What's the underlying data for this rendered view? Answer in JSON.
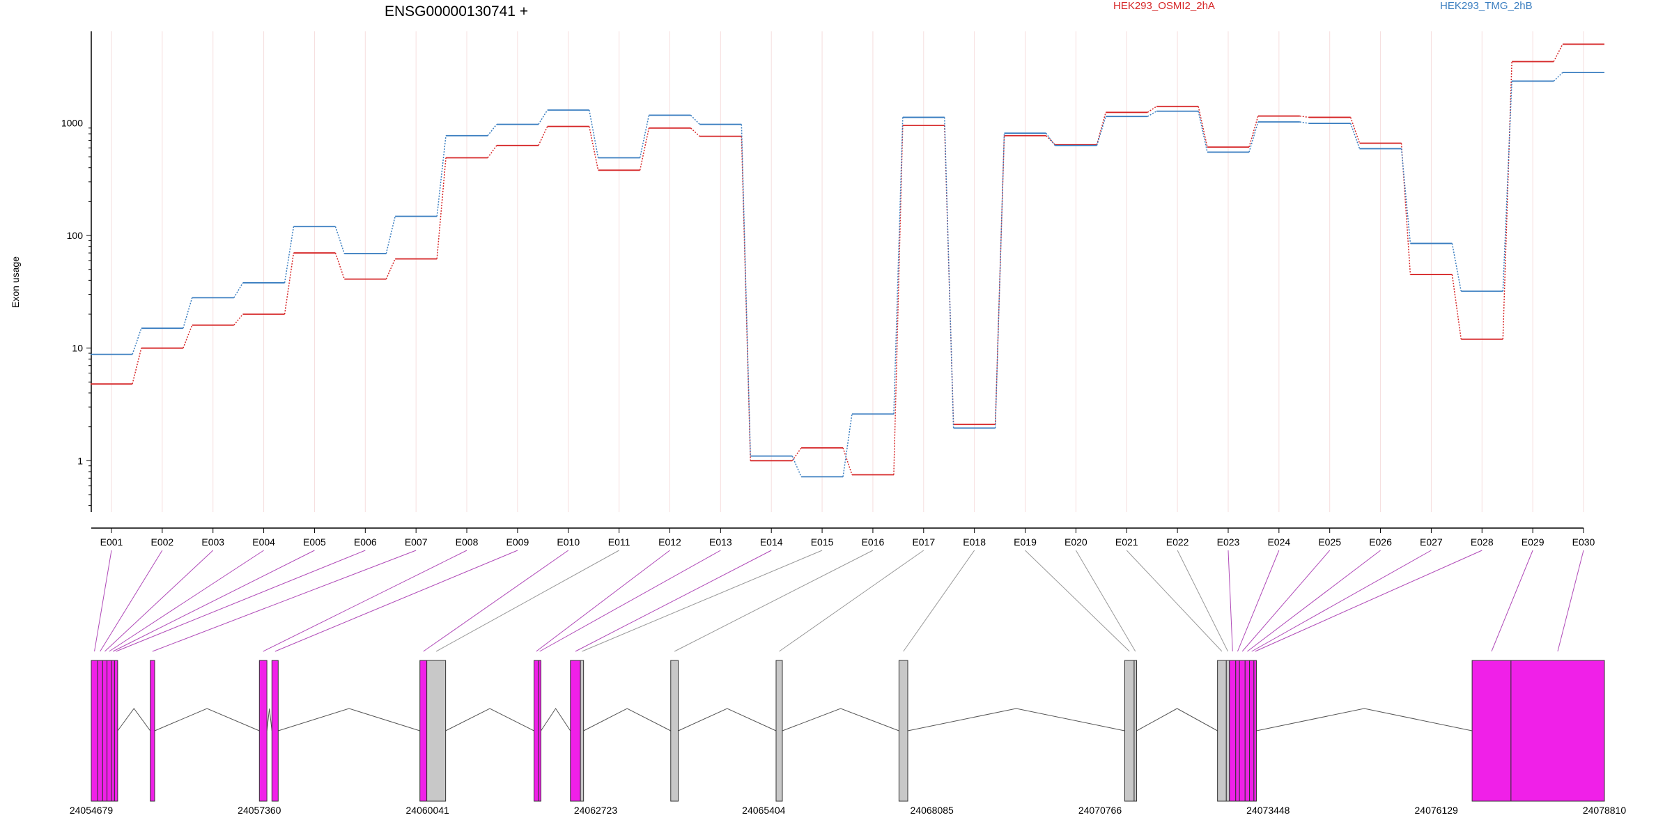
{
  "chart_data": {
    "type": "line",
    "title": "ENSG00000130741 +",
    "ylabel": "Exon usage",
    "xlabel": "",
    "yscale": "log",
    "ylim": [
      0.35,
      6500
    ],
    "grid": "vertical",
    "legend_position": "top",
    "y_ticks": [
      1,
      10,
      100,
      1000
    ],
    "categories": [
      "E001",
      "E002",
      "E003",
      "E004",
      "E005",
      "E006",
      "E007",
      "E008",
      "E009",
      "E010",
      "E011",
      "E012",
      "E013",
      "E014",
      "E015",
      "E016",
      "E017",
      "E018",
      "E019",
      "E020",
      "E021",
      "E022",
      "E023",
      "E024",
      "E025",
      "E026",
      "E027",
      "E028",
      "E029",
      "E030"
    ],
    "series": [
      {
        "name": "HEK293_OSMI2_2hA",
        "color": "#d62728",
        "values": [
          4.8,
          10,
          16,
          20,
          70,
          41,
          62,
          490,
          630,
          930,
          380,
          900,
          760,
          1.0,
          1.3,
          0.75,
          950,
          2.1,
          770,
          640,
          1240,
          1400,
          610,
          1150,
          1120,
          660,
          45,
          12,
          3500,
          5000
        ]
      },
      {
        "name": "HEK293_TMG_2hB",
        "color": "#3a7ec0",
        "values": [
          8.8,
          15,
          28,
          38,
          120,
          69,
          148,
          770,
          970,
          1300,
          490,
          1170,
          970,
          1.1,
          0.72,
          2.6,
          1120,
          1.95,
          810,
          630,
          1140,
          1270,
          550,
          1020,
          990,
          590,
          85,
          32,
          2350,
          2800
        ]
      }
    ],
    "gene_model": {
      "coord_ticks": [
        "24054679",
        "24057360",
        "24060041",
        "24062723",
        "24065404",
        "24068085",
        "24070766",
        "24073448",
        "24076129",
        "24078810"
      ],
      "range": [
        24054679,
        24078810
      ],
      "exons": [
        {
          "start": 24054679,
          "end": 24054780,
          "type": "used",
          "bin": "E001"
        },
        {
          "start": 24054780,
          "end": 24054860,
          "type": "used",
          "bin": "E002"
        },
        {
          "start": 24054860,
          "end": 24054930,
          "type": "used",
          "bin": "E003"
        },
        {
          "start": 24054930,
          "end": 24055000,
          "type": "used",
          "bin": "E004"
        },
        {
          "start": 24055000,
          "end": 24055050,
          "type": "used",
          "bin": "E005"
        },
        {
          "start": 24055050,
          "end": 24055100,
          "type": "used",
          "bin": "E006"
        },
        {
          "start": 24055620,
          "end": 24055690,
          "type": "used",
          "bin": "E007"
        },
        {
          "start": 24057360,
          "end": 24057480,
          "type": "used",
          "bin": "E008"
        },
        {
          "start": 24057560,
          "end": 24057660,
          "type": "used",
          "bin": "E009"
        },
        {
          "start": 24059920,
          "end": 24060030,
          "type": "used",
          "bin": "E010"
        },
        {
          "start": 24060030,
          "end": 24060330,
          "type": "unused",
          "bin": "E011"
        },
        {
          "start": 24061740,
          "end": 24061810,
          "type": "used",
          "bin": "E012"
        },
        {
          "start": 24061810,
          "end": 24061850,
          "type": "used",
          "bin": "E013"
        },
        {
          "start": 24062320,
          "end": 24062480,
          "type": "used",
          "bin": "E014"
        },
        {
          "start": 24062480,
          "end": 24062530,
          "type": "unused",
          "bin": "E015"
        },
        {
          "start": 24063920,
          "end": 24064040,
          "type": "unused",
          "bin": "E016"
        },
        {
          "start": 24065600,
          "end": 24065700,
          "type": "unused",
          "bin": "E017"
        },
        {
          "start": 24067560,
          "end": 24067700,
          "type": "unused",
          "bin": "E018"
        },
        {
          "start": 24071160,
          "end": 24071310,
          "type": "unused",
          "bin": "E019"
        },
        {
          "start": 24071310,
          "end": 24071350,
          "type": "unused",
          "bin": "E020"
        },
        {
          "start": 24072640,
          "end": 24072780,
          "type": "unused",
          "bin": "E021"
        },
        {
          "start": 24072780,
          "end": 24072830,
          "type": "unused",
          "bin": "E022"
        },
        {
          "start": 24072830,
          "end": 24072930,
          "type": "used",
          "bin": "E023"
        },
        {
          "start": 24072930,
          "end": 24072990,
          "type": "used",
          "bin": "E024"
        },
        {
          "start": 24072990,
          "end": 24073080,
          "type": "used",
          "bin": "E025"
        },
        {
          "start": 24073080,
          "end": 24073150,
          "type": "used",
          "bin": "E026"
        },
        {
          "start": 24073150,
          "end": 24073220,
          "type": "used",
          "bin": "E027"
        },
        {
          "start": 24073220,
          "end": 24073260,
          "type": "used",
          "bin": "E028"
        },
        {
          "start": 24076700,
          "end": 24077320,
          "type": "used",
          "bin": "E029"
        },
        {
          "start": 24077320,
          "end": 24078810,
          "type": "used",
          "bin": "E030"
        }
      ],
      "introns": [
        [
          24055100,
          24055620
        ],
        [
          24055690,
          24057360
        ],
        [
          24057480,
          24057560
        ],
        [
          24057660,
          24059920
        ],
        [
          24060330,
          24061740
        ],
        [
          24061850,
          24062320
        ],
        [
          24062530,
          24063920
        ],
        [
          24064040,
          24065600
        ],
        [
          24065700,
          24067560
        ],
        [
          24067700,
          24071160
        ],
        [
          24071350,
          24072640
        ],
        [
          24073260,
          24076700
        ]
      ],
      "colors": {
        "used": "#f020e8",
        "unused": "#c8c8c8",
        "link_used": "#b04ab8",
        "link_unused": "#999999"
      }
    }
  }
}
